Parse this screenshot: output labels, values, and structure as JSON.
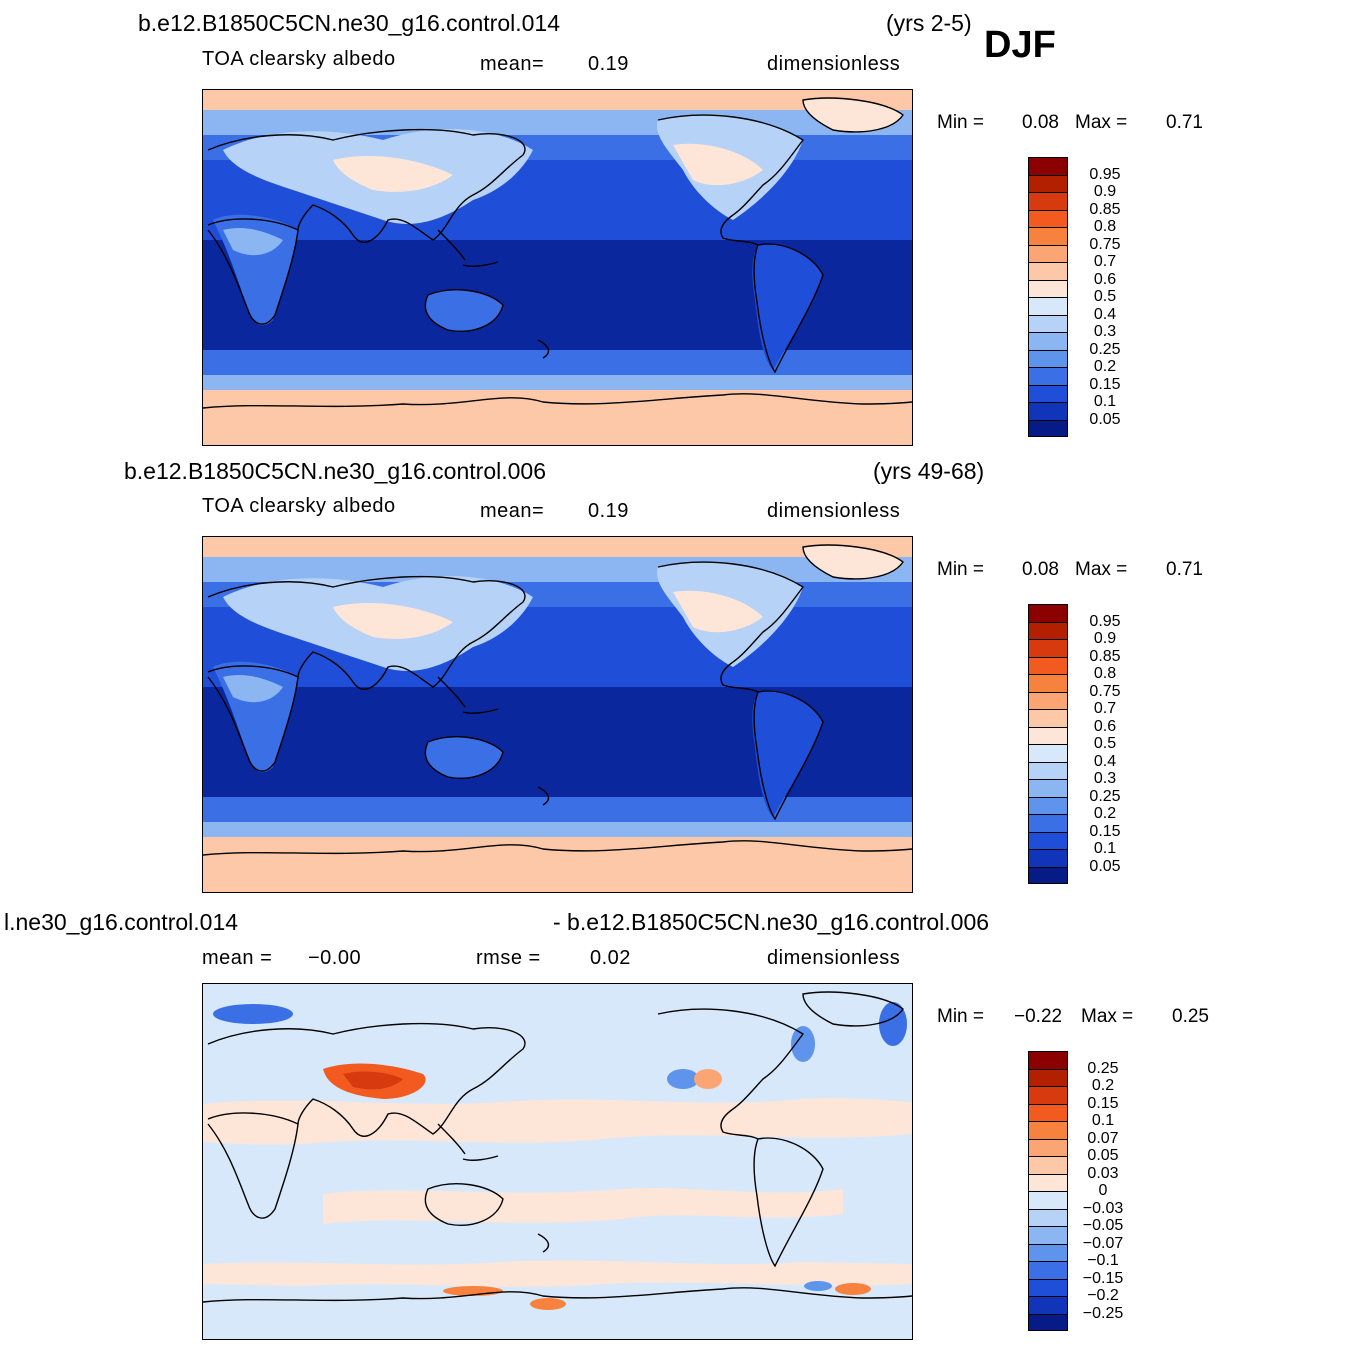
{
  "season": "DJF",
  "panels": [
    {
      "case": "b.e12.B1850C5CN.ne30_g16.control.014",
      "years": "(yrs 2-5)",
      "variable": "TOA clearsky albedo",
      "stat1_label": "mean=",
      "stat1_value": "0.19",
      "units": "dimensionless",
      "min_label": "Min =",
      "min_value": "0.08",
      "max_label": "Max =",
      "max_value": "0.71"
    },
    {
      "case": "b.e12.B1850C5CN.ne30_g16.control.006",
      "years": "(yrs 49-68)",
      "variable": "TOA clearsky albedo",
      "stat1_label": "mean=",
      "stat1_value": "0.19",
      "units": "dimensionless",
      "min_label": "Min =",
      "min_value": "0.08",
      "max_label": "Max =",
      "max_value": "0.71"
    },
    {
      "case_left": "l.ne30_g16.control.014",
      "case_right": "- b.e12.B1850C5CN.ne30_g16.control.006",
      "stat1_label": "mean =",
      "stat1_value": "−0.00",
      "stat2_label": "rmse =",
      "stat2_value": "0.02",
      "units": "dimensionless",
      "min_label": "Min =",
      "min_value": "−0.22",
      "max_label": "Max =",
      "max_value": "0.25"
    }
  ],
  "colorbars": {
    "albedo": {
      "labels": [
        "0.95",
        "0.9",
        "0.85",
        "0.8",
        "0.75",
        "0.7",
        "0.6",
        "0.5",
        "0.4",
        "0.3",
        "0.25",
        "0.2",
        "0.15",
        "0.1",
        "0.05"
      ],
      "colors": [
        "#8b0000",
        "#b22000",
        "#d83a10",
        "#f25a20",
        "#f7823e",
        "#fba474",
        "#fdc8a8",
        "#fde6d8",
        "#d8e8fb",
        "#b6d2f7",
        "#8cb6f2",
        "#5e94ec",
        "#3a6fe6",
        "#1f4fd8",
        "#1035b8",
        "#061b86"
      ]
    },
    "diff": {
      "labels": [
        "0.25",
        "0.2",
        "0.15",
        "0.1",
        "0.07",
        "0.05",
        "0.03",
        "0",
        "−0.03",
        "−0.05",
        "−0.07",
        "−0.1",
        "−0.15",
        "−0.2",
        "−0.25"
      ],
      "colors": [
        "#8b0000",
        "#b22000",
        "#d83a10",
        "#f25a20",
        "#f7823e",
        "#fba474",
        "#fdc8a8",
        "#fde6d8",
        "#d8e8fb",
        "#b6d2f7",
        "#8cb6f2",
        "#5e94ec",
        "#3a6fe6",
        "#1f4fd8",
        "#1035b8",
        "#061b86"
      ]
    }
  },
  "chart_data": [
    {
      "type": "heatmap",
      "title": "b.e12.B1850C5CN.ne30_g16.control.014",
      "subtitle": "TOA clearsky albedo",
      "ylim": [
        0.05,
        0.95
      ],
      "min": 0.08,
      "max": 0.71,
      "mean": 0.19,
      "levels": [
        0.05,
        0.1,
        0.15,
        0.2,
        0.25,
        0.3,
        0.4,
        0.5,
        0.6,
        0.7,
        0.75,
        0.8,
        0.85,
        0.9,
        0.95
      ]
    },
    {
      "type": "heatmap",
      "title": "b.e12.B1850C5CN.ne30_g16.control.006",
      "subtitle": "TOA clearsky albedo",
      "ylim": [
        0.05,
        0.95
      ],
      "min": 0.08,
      "max": 0.71,
      "mean": 0.19,
      "levels": [
        0.05,
        0.1,
        0.15,
        0.2,
        0.25,
        0.3,
        0.4,
        0.5,
        0.6,
        0.7,
        0.75,
        0.8,
        0.85,
        0.9,
        0.95
      ]
    },
    {
      "type": "heatmap",
      "title": "l.ne30_g16.control.014 - b.e12.B1850C5CN.ne30_g16.control.006",
      "ylim": [
        -0.25,
        0.25
      ],
      "min": -0.22,
      "max": 0.25,
      "mean": -0.0,
      "rmse": 0.02,
      "levels": [
        -0.25,
        -0.2,
        -0.15,
        -0.1,
        -0.07,
        -0.05,
        -0.03,
        0,
        0.03,
        0.05,
        0.07,
        0.1,
        0.15,
        0.2,
        0.25
      ]
    }
  ]
}
